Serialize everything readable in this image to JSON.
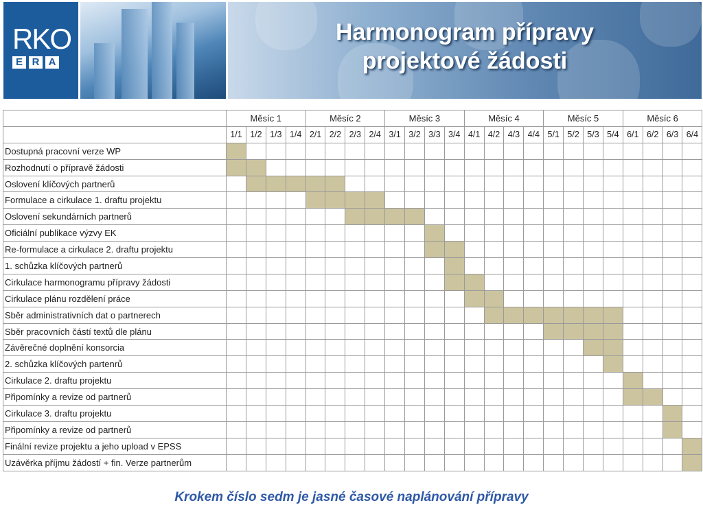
{
  "logo": {
    "top": "RKO",
    "bottom_letters": [
      "E",
      "R",
      "A"
    ]
  },
  "title": {
    "line1": "Harmonogram přípravy",
    "line2": "projektové žádosti"
  },
  "gantt": {
    "months": [
      "Měsíc 1",
      "Měsíc 2",
      "Měsíc 3",
      "Měsíc 4",
      "Měsíc 5",
      "Měsíc 6"
    ],
    "weeks": [
      "1/1",
      "1/2",
      "1/3",
      "1/4",
      "2/1",
      "2/2",
      "2/3",
      "2/4",
      "3/1",
      "3/2",
      "3/3",
      "3/4",
      "4/1",
      "4/2",
      "4/3",
      "4/4",
      "5/1",
      "5/2",
      "5/3",
      "5/4",
      "6/1",
      "6/2",
      "6/3",
      "6/4"
    ],
    "fill_color": "#cbc49f",
    "tasks": [
      {
        "name": "Dostupná pracovní verze WP",
        "start": 1,
        "end": 1
      },
      {
        "name": "Rozhodnutí o přípravě žádosti",
        "start": 1,
        "end": 2
      },
      {
        "name": "Oslovení klíčových partnerů",
        "start": 2,
        "end": 6
      },
      {
        "name": "Formulace a cirkulace 1. draftu projektu",
        "start": 5,
        "end": 8
      },
      {
        "name": "Oslovení sekundárních partnerů",
        "start": 7,
        "end": 10
      },
      {
        "name": "Oficiální publikace výzvy EK",
        "start": 11,
        "end": 11
      },
      {
        "name": "Re-formulace a cirkulace 2. draftu projektu",
        "start": 11,
        "end": 12
      },
      {
        "name": "1. schůzka klíčových partnerů",
        "start": 12,
        "end": 12
      },
      {
        "name": "Cirkulace harmonogramu přípravy žádosti",
        "start": 12,
        "end": 13
      },
      {
        "name": "Cirkulace plánu rozdělení práce",
        "start": 13,
        "end": 14
      },
      {
        "name": "Sběr administrativních dat o partnerech",
        "start": 14,
        "end": 20
      },
      {
        "name": "Sběr pracovních částí textů dle plánu",
        "start": 17,
        "end": 20
      },
      {
        "name": "Závěrečné doplnění konsorcia",
        "start": 19,
        "end": 20
      },
      {
        "name": "2. schůzka klíčových partenrů",
        "start": 20,
        "end": 20
      },
      {
        "name": "Cirkulace 2. draftu projektu",
        "start": 21,
        "end": 21
      },
      {
        "name": "Připomínky a revize od partnerů",
        "start": 21,
        "end": 22
      },
      {
        "name": "Cirkulace 3. draftu projektu",
        "start": 23,
        "end": 23
      },
      {
        "name": "Připomínky a revize od partnerů",
        "start": 23,
        "end": 23
      },
      {
        "name": "Finální revize projektu a jeho upload v EPSS",
        "start": 24,
        "end": 24
      },
      {
        "name": "Uzávěrka příjmu žádostí + fin. Verze partnerům",
        "start": 24,
        "end": 24
      }
    ]
  },
  "caption": "Krokem číslo sedm je jasné časové naplánování přípravy"
}
